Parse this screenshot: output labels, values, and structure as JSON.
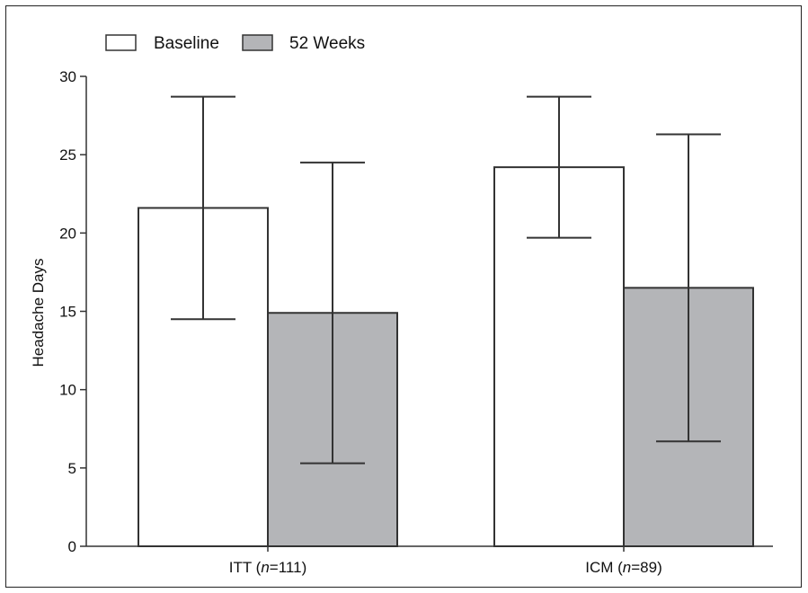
{
  "chart_data": {
    "type": "bar",
    "categories": [
      "ITT (n=111)",
      "ICM (n=89)"
    ],
    "category_parts": [
      {
        "prefix": "ITT (",
        "italic": "n",
        "suffix": "=111)"
      },
      {
        "prefix": "ICM (",
        "italic": "n",
        "suffix": "=89)"
      }
    ],
    "series": [
      {
        "name": "Baseline",
        "values": [
          21.6,
          24.2
        ],
        "error_low": [
          14.5,
          19.7
        ],
        "error_high": [
          28.7,
          28.7
        ],
        "color": "#ffffff"
      },
      {
        "name": "52 Weeks",
        "values": [
          14.9,
          16.5
        ],
        "error_low": [
          5.3,
          6.7
        ],
        "error_high": [
          24.5,
          26.3
        ],
        "color": "#b4b5b8"
      }
    ],
    "ylabel": "Headache Days",
    "ylim": [
      0,
      30
    ],
    "yticks": [
      "0",
      "5",
      "10",
      "15",
      "20",
      "25",
      "30"
    ],
    "legend_position": "top-left",
    "grid": false
  }
}
